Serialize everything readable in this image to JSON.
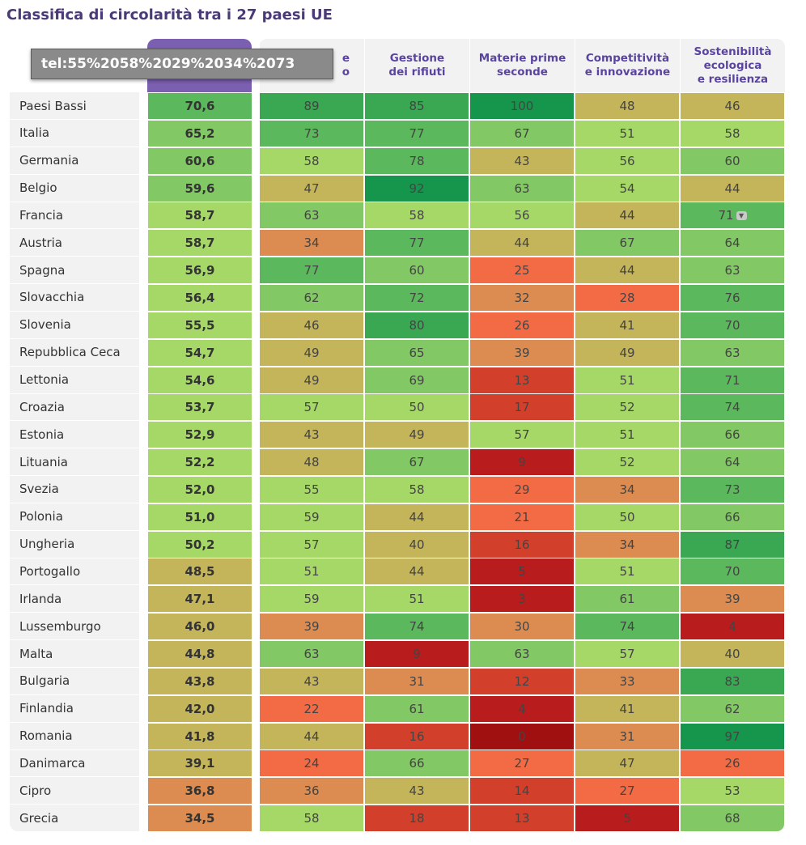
{
  "title": "Classifica di circolarità tra i 27 paesi UE",
  "tooltip": "tel:55%2058%2029%2034%2073",
  "chart_data": {
    "type": "table",
    "columns": [
      {
        "key": "score",
        "label": ""
      },
      {
        "key": "produzione",
        "label": "e\no"
      },
      {
        "key": "rifiuti",
        "label": "Gestione\ndei rifiuti"
      },
      {
        "key": "materie",
        "label": "Materie prime\nseconde"
      },
      {
        "key": "competitivita",
        "label": "Competitività\ne innovazione"
      },
      {
        "key": "sostenibilita",
        "label": "Sostenibilità\necologica\ne resilienza"
      }
    ],
    "rows": [
      {
        "country": "Paesi Bassi",
        "score": "70,6",
        "values": [
          89,
          85,
          100,
          48,
          46
        ]
      },
      {
        "country": "Italia",
        "score": "65,2",
        "values": [
          73,
          77,
          67,
          51,
          58
        ]
      },
      {
        "country": "Germania",
        "score": "60,6",
        "values": [
          58,
          78,
          43,
          56,
          60
        ]
      },
      {
        "country": "Belgio",
        "score": "59,6",
        "values": [
          47,
          92,
          63,
          54,
          44
        ]
      },
      {
        "country": "Francia",
        "score": "58,7",
        "values": [
          63,
          58,
          56,
          44,
          71
        ]
      },
      {
        "country": "Austria",
        "score": "58,7",
        "values": [
          34,
          77,
          44,
          67,
          64
        ]
      },
      {
        "country": "Spagna",
        "score": "56,9",
        "values": [
          77,
          60,
          25,
          44,
          63
        ]
      },
      {
        "country": "Slovacchia",
        "score": "56,4",
        "values": [
          62,
          72,
          32,
          28,
          76
        ]
      },
      {
        "country": "Slovenia",
        "score": "55,5",
        "values": [
          46,
          80,
          26,
          41,
          70
        ]
      },
      {
        "country": "Repubblica Ceca",
        "score": "54,7",
        "values": [
          49,
          65,
          39,
          49,
          63
        ]
      },
      {
        "country": "Lettonia",
        "score": "54,6",
        "values": [
          49,
          69,
          13,
          51,
          71
        ]
      },
      {
        "country": "Croazia",
        "score": "53,7",
        "values": [
          57,
          50,
          17,
          52,
          74
        ]
      },
      {
        "country": "Estonia",
        "score": "52,9",
        "values": [
          43,
          49,
          57,
          51,
          66
        ]
      },
      {
        "country": "Lituania",
        "score": "52,2",
        "values": [
          48,
          67,
          9,
          52,
          64
        ]
      },
      {
        "country": "Svezia",
        "score": "52,0",
        "values": [
          55,
          58,
          29,
          34,
          73
        ]
      },
      {
        "country": "Polonia",
        "score": "51,0",
        "values": [
          59,
          44,
          21,
          50,
          66
        ]
      },
      {
        "country": "Ungheria",
        "score": "50,2",
        "values": [
          57,
          40,
          16,
          34,
          87
        ]
      },
      {
        "country": "Portogallo",
        "score": "48,5",
        "values": [
          51,
          44,
          5,
          51,
          70
        ]
      },
      {
        "country": "Irlanda",
        "score": "47,1",
        "values": [
          59,
          51,
          3,
          61,
          39
        ]
      },
      {
        "country": "Lussemburgo",
        "score": "46,0",
        "values": [
          39,
          74,
          30,
          74,
          4
        ]
      },
      {
        "country": "Malta",
        "score": "44,8",
        "values": [
          63,
          9,
          63,
          57,
          40
        ]
      },
      {
        "country": "Bulgaria",
        "score": "43,8",
        "values": [
          43,
          31,
          12,
          33,
          83
        ]
      },
      {
        "country": "Finlandia",
        "score": "42,0",
        "values": [
          22,
          61,
          4,
          41,
          62
        ]
      },
      {
        "country": "Romania",
        "score": "41,8",
        "values": [
          44,
          16,
          0,
          31,
          97
        ]
      },
      {
        "country": "Danimarca",
        "score": "39,1",
        "values": [
          24,
          66,
          27,
          47,
          26
        ]
      },
      {
        "country": "Cipro",
        "score": "36,8",
        "values": [
          36,
          43,
          14,
          27,
          53
        ]
      },
      {
        "country": "Grecia",
        "score": "34,5",
        "values": [
          58,
          18,
          13,
          5,
          68
        ]
      }
    ]
  },
  "colors": {
    "c0": "#a01010",
    "c5": "#b81c1c",
    "c12": "#d2402c",
    "c20": "#f26b45",
    "c30": "#dc8c50",
    "c40": "#c4b45a",
    "c50": "#a6d868",
    "c60": "#82c864",
    "c70": "#5cb85c",
    "c80": "#3aa852",
    "c90": "#16964c"
  }
}
